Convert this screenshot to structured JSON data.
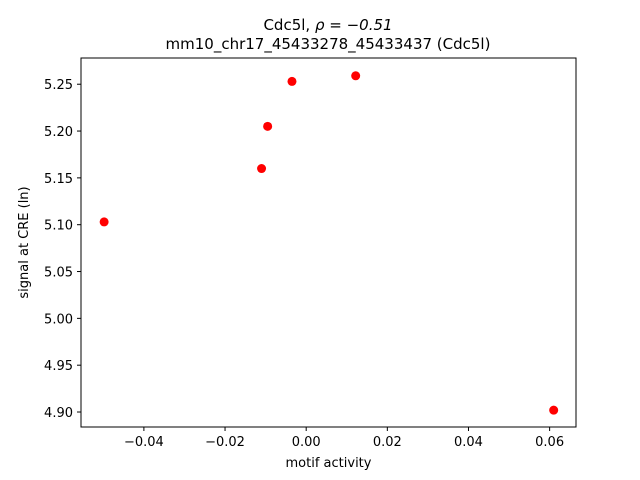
{
  "chart_data": {
    "type": "scatter",
    "title_gene": "Cdc5l",
    "title_rho": "ρ = −0.51",
    "title_line2": "mm10_chr17_45433278_45433437 (Cdc5l)",
    "xlabel": "motif activity",
    "ylabel": "signal at CRE (ln)",
    "xlim": [
      -0.0555,
      0.0665
    ],
    "ylim": [
      4.884,
      5.278
    ],
    "xticks": [
      -0.04,
      -0.02,
      0.0,
      0.02,
      0.04,
      0.06
    ],
    "xtick_labels": [
      "−0.04",
      "−0.02",
      "0.00",
      "0.02",
      "0.04",
      "0.06"
    ],
    "yticks": [
      4.9,
      4.95,
      5.0,
      5.05,
      5.1,
      5.15,
      5.2,
      5.25
    ],
    "ytick_labels": [
      "4.90",
      "4.95",
      "5.00",
      "5.05",
      "5.10",
      "5.15",
      "5.20",
      "5.25"
    ],
    "grid": false,
    "marker_color": "#ff0000",
    "points": [
      {
        "x": -0.0498,
        "y": 5.103
      },
      {
        "x": -0.011,
        "y": 5.16
      },
      {
        "x": -0.0095,
        "y": 5.205
      },
      {
        "x": -0.0035,
        "y": 5.253
      },
      {
        "x": 0.0122,
        "y": 5.259
      },
      {
        "x": 0.061,
        "y": 4.902
      }
    ]
  }
}
